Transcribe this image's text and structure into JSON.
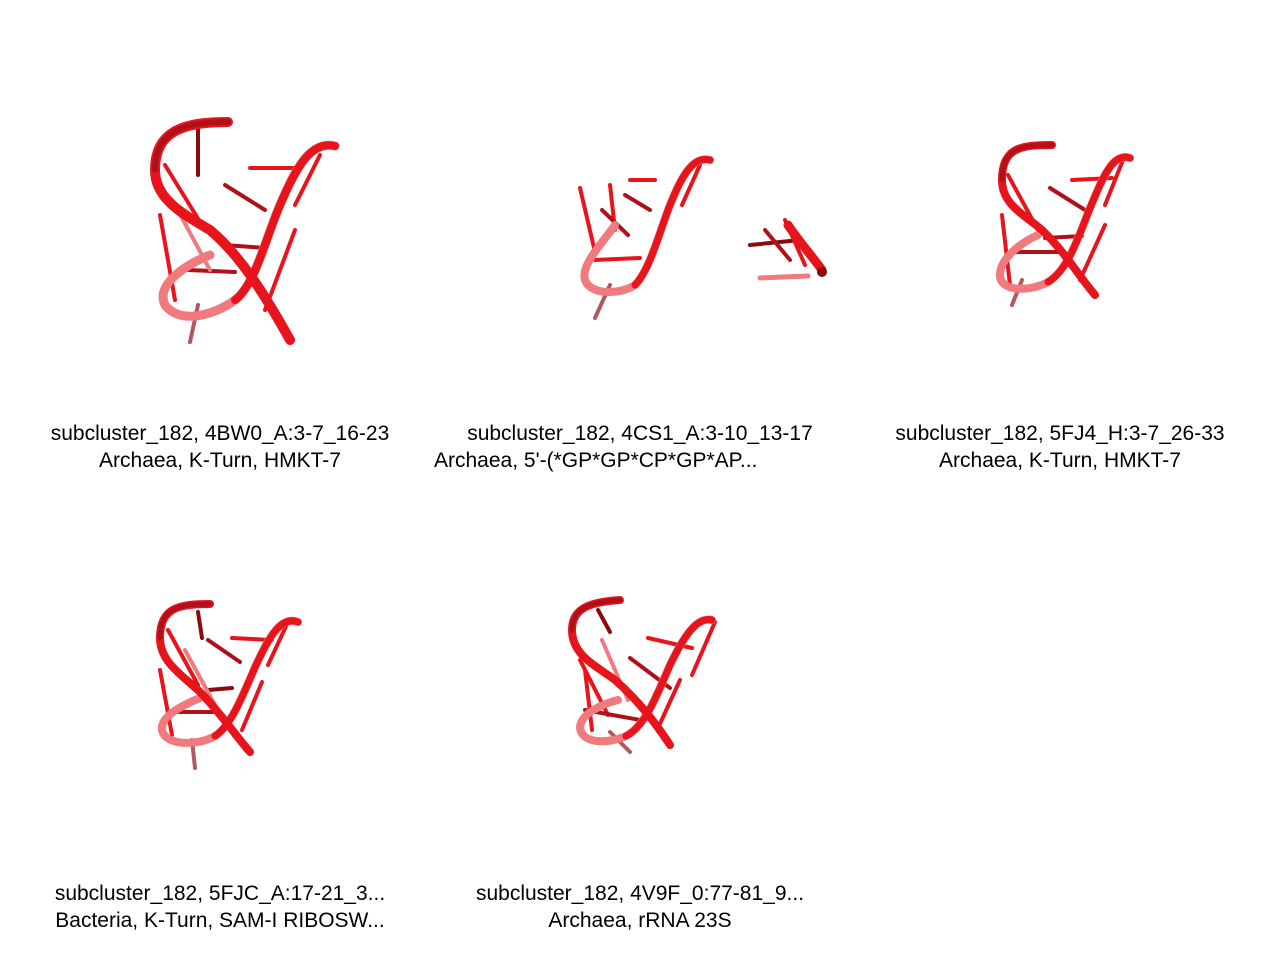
{
  "colors": {
    "strand": "#e8141c",
    "strand_dark": "#8a0a0e",
    "strand_light": "#f07a7e",
    "background": "#ffffff",
    "text": "#000000"
  },
  "panels": [
    {
      "id": "p1",
      "line1": "subcluster_182, 4BW0_A:3-7_16-23",
      "line2": "Archaea, K-Turn, HMKT-7",
      "icon": "rna-kturn-structure-icon"
    },
    {
      "id": "p2",
      "line1": "subcluster_182, 4CS1_A:3-10_13-17",
      "line2": "Archaea, 5'-(*GP*GP*CP*GP*AP...",
      "icon": "rna-fragment-structure-icon"
    },
    {
      "id": "p3",
      "line1": "subcluster_182, 5FJ4_H:3-7_26-33",
      "line2": "Archaea, K-Turn, HMKT-7",
      "icon": "rna-kturn-structure-icon"
    },
    {
      "id": "p4",
      "line1": "subcluster_182, 5FJC_A:17-21_3...",
      "line2": "Bacteria, K-Turn, SAM-I RIBOSW...",
      "icon": "rna-kturn-structure-icon"
    },
    {
      "id": "p5",
      "line1": "subcluster_182, 4V9F_0:77-81_9...",
      "line2": "Archaea, rRNA 23S",
      "icon": "rna-kturn-structure-icon"
    }
  ]
}
